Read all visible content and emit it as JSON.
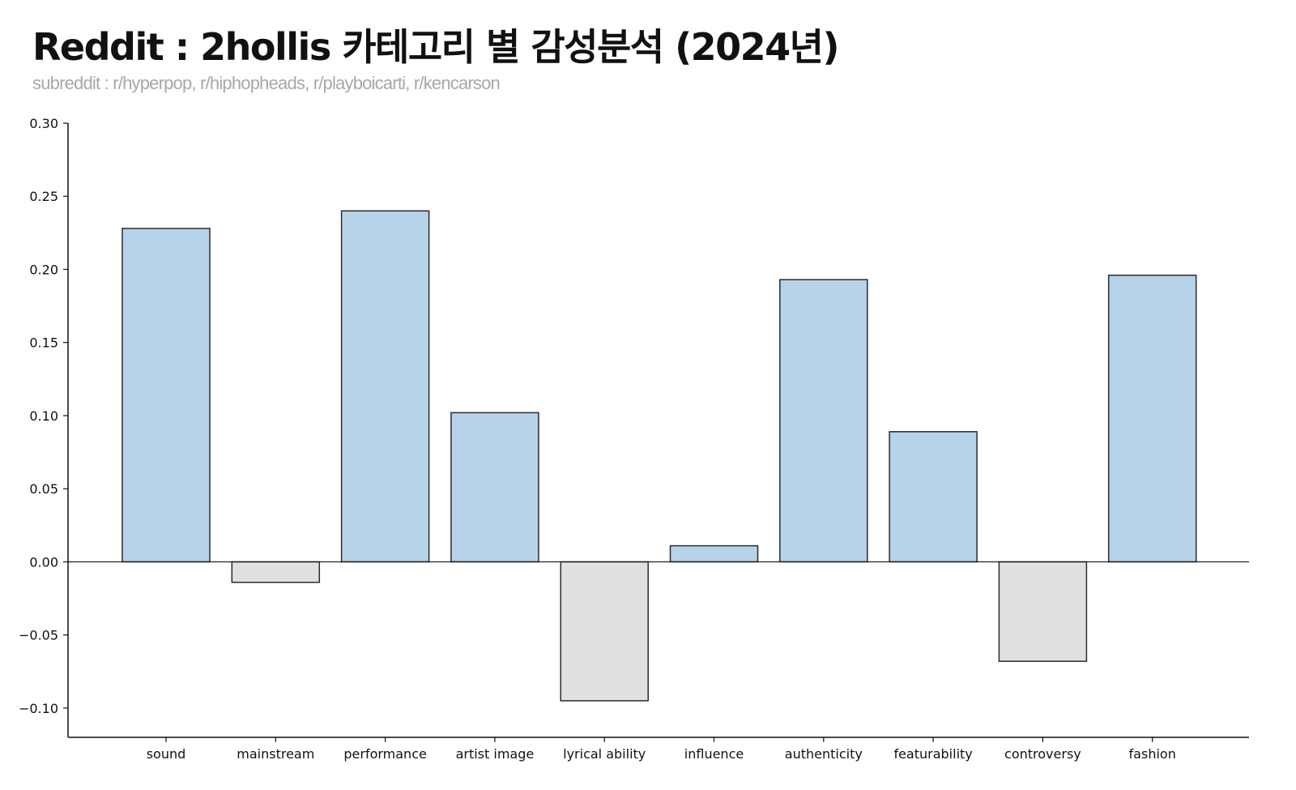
{
  "header": {
    "title": "Reddit : 2hollis 카테고리 별 감성분석 (2024년)",
    "subtitle": "subreddit : r/hyperpop, r/hiphopheads, r/playboicarti, r/kencarson"
  },
  "chart_data": {
    "type": "bar",
    "categories": [
      "sound",
      "mainstream",
      "performance",
      "artist image",
      "lyrical ability",
      "influence",
      "authenticity",
      "featurability",
      "controversy",
      "fashion"
    ],
    "values": [
      0.228,
      -0.014,
      0.24,
      0.102,
      -0.095,
      0.011,
      0.193,
      0.089,
      -0.068,
      0.196
    ],
    "ylim": [
      -0.12,
      0.3
    ],
    "yticks": [
      -0.1,
      -0.05,
      0.0,
      0.05,
      0.1,
      0.15,
      0.2,
      0.25,
      0.3
    ],
    "ytick_labels": [
      "−0.10",
      "−0.05",
      "0.00",
      "0.05",
      "0.10",
      "0.15",
      "0.20",
      "0.25",
      "0.30"
    ],
    "colors": {
      "positive": "#b7d3ea",
      "negative": "#e0e0e0",
      "edge": "#2b2b2b"
    },
    "grid": false,
    "legend": "none"
  }
}
